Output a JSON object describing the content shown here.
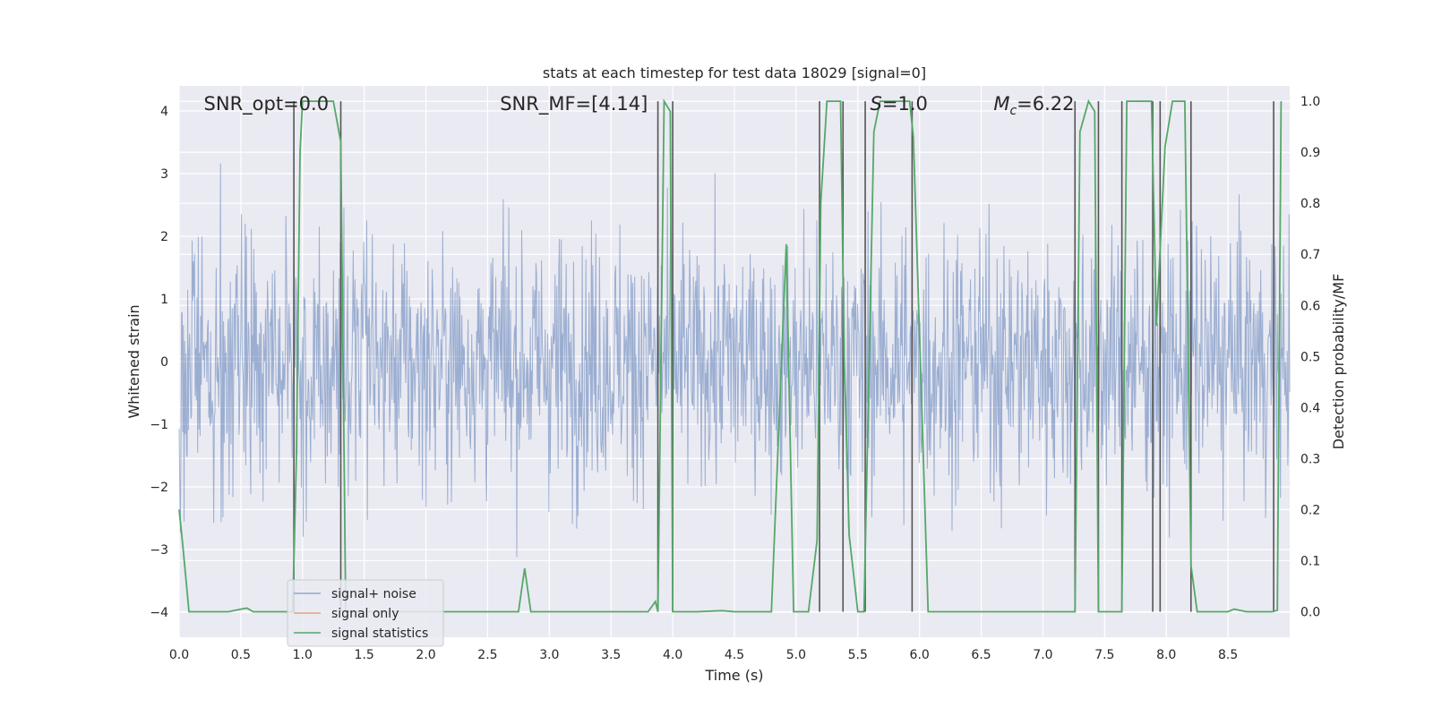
{
  "chart_data": {
    "type": "line",
    "title": "stats at each timestep for test data 18029 [signal=0]",
    "xlabel": "Time (s)",
    "ylabel": "Whitened strain",
    "ylabel_right": "Detection probability/MF",
    "xlim": [
      0,
      9.0
    ],
    "ylim": [
      -4.4,
      4.4
    ],
    "ylim_right": [
      -0.05,
      1.03
    ],
    "x_ticks": [
      0.0,
      0.5,
      1.0,
      1.5,
      2.0,
      2.5,
      3.0,
      3.5,
      4.0,
      4.5,
      5.0,
      5.5,
      6.0,
      6.5,
      7.0,
      7.5,
      8.0,
      8.5
    ],
    "x_tick_labels": [
      "0.0",
      "0.5",
      "1.0",
      "1.5",
      "2.0",
      "2.5",
      "3.0",
      "3.5",
      "4.0",
      "4.5",
      "5.0",
      "5.5",
      "6.0",
      "6.5",
      "7.0",
      "7.5",
      "8.0",
      "8.5"
    ],
    "y_ticks": [
      -4,
      -3,
      -2,
      -1,
      0,
      1,
      2,
      3,
      4
    ],
    "y_tick_labels": [
      "−4",
      "−3",
      "−2",
      "−1",
      "0",
      "1",
      "2",
      "3",
      "4"
    ],
    "y_ticks_right": [
      0.0,
      0.1,
      0.2,
      0.3,
      0.4,
      0.5,
      0.6,
      0.7,
      0.8,
      0.9,
      1.0
    ],
    "y_tick_labels_right": [
      "0.0",
      "0.1",
      "0.2",
      "0.3",
      "0.4",
      "0.5",
      "0.6",
      "0.7",
      "0.8",
      "0.9",
      "1.0"
    ],
    "grid": true,
    "legend_position": "lower-left",
    "annotations": [
      {
        "text": "SNR_opt=0.0",
        "x": 0.2
      },
      {
        "text": "SNR_MF=[4.14]",
        "x": 2.6
      },
      {
        "text": "S=1.0",
        "x": 5.6
      },
      {
        "text": "M_c=6.22",
        "x": 6.6
      }
    ],
    "vertical_lines_x": [
      0.93,
      1.31,
      3.88,
      4.0,
      5.19,
      5.38,
      5.56,
      5.94,
      7.26,
      7.45,
      7.64,
      7.89,
      7.95,
      8.2,
      8.87
    ],
    "series": [
      {
        "name": "signal+ noise",
        "color": "#4c72b0",
        "style": "noise",
        "amplitude_std": 1.0,
        "y_range": [
          -4.0,
          4.0
        ],
        "samples": 1800
      },
      {
        "name": "signal only",
        "color": "#dd8452",
        "values": []
      },
      {
        "name": "signal statistics",
        "color": "#55a868",
        "axis": "right",
        "x": [
          0.0,
          0.03,
          0.08,
          0.2,
          0.4,
          0.5,
          0.55,
          0.6,
          0.8,
          0.92,
          0.95,
          0.98,
          1.0,
          1.1,
          1.25,
          1.31,
          1.35,
          1.4,
          1.6,
          2.0,
          2.5,
          2.75,
          2.8,
          2.85,
          3.0,
          3.5,
          3.8,
          3.86,
          3.88,
          3.93,
          3.98,
          4.0,
          4.03,
          4.2,
          4.4,
          4.5,
          4.8,
          4.92,
          4.98,
          5.0,
          5.1,
          5.17,
          5.2,
          5.25,
          5.36,
          5.39,
          5.43,
          5.5,
          5.55,
          5.63,
          5.68,
          5.75,
          5.92,
          5.95,
          6.07,
          6.5,
          7.0,
          7.26,
          7.3,
          7.37,
          7.42,
          7.45,
          7.47,
          7.6,
          7.64,
          7.68,
          7.75,
          7.88,
          7.92,
          7.99,
          8.05,
          8.15,
          8.2,
          8.25,
          8.3,
          8.5,
          8.55,
          8.65,
          8.86,
          8.9,
          8.93
        ],
        "values": [
          0.2,
          0.13,
          0.0,
          0.0,
          0.0,
          0.005,
          0.007,
          0.0,
          0.0,
          0.0,
          0.3,
          0.9,
          1.0,
          1.0,
          1.0,
          0.92,
          0.0,
          0.0,
          0.0,
          0.0,
          0.0,
          0.0,
          0.085,
          0.0,
          0.0,
          0.0,
          0.0,
          0.02,
          0.0,
          1.0,
          0.98,
          0.0,
          0.0,
          0.0,
          0.002,
          0.0,
          0.0,
          0.72,
          0.0,
          0.0,
          0.0,
          0.14,
          0.8,
          1.0,
          1.0,
          0.5,
          0.15,
          0.0,
          0.0,
          0.94,
          1.0,
          1.0,
          1.0,
          0.93,
          0.0,
          0.0,
          0.0,
          0.0,
          0.94,
          1.0,
          0.98,
          0.0,
          0.0,
          0.0,
          0.0,
          1.0,
          1.0,
          1.0,
          0.56,
          0.91,
          1.0,
          1.0,
          0.09,
          0.0,
          0.0,
          0.0,
          0.005,
          0.0,
          0.0,
          0.003,
          1.0
        ]
      }
    ]
  }
}
